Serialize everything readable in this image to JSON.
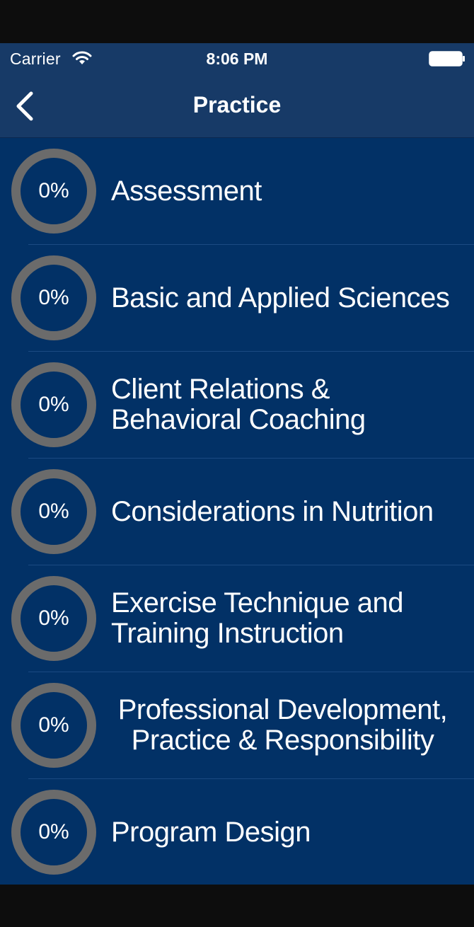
{
  "status_bar": {
    "carrier": "Carrier",
    "time": "8:06 PM"
  },
  "nav": {
    "title": "Practice",
    "back_icon": "chevron-left-icon"
  },
  "colors": {
    "background": "#023166",
    "nav_background": "#173a67",
    "ring": "#6b6b6b",
    "text": "#ffffff"
  },
  "topics": [
    {
      "label": "Assessment",
      "progress": "0%"
    },
    {
      "label": "Basic and Applied Sciences",
      "progress": "0%"
    },
    {
      "label": "Client Relations &\nBehavioral Coaching",
      "progress": "0%"
    },
    {
      "label": "Considerations in Nutrition",
      "progress": "0%"
    },
    {
      "label": "Exercise Technique and\nTraining Instruction",
      "progress": "0%"
    },
    {
      "label": "Professional Development,\nPractice & Responsibility",
      "progress": "0%"
    },
    {
      "label": "Program Design",
      "progress": "0%"
    }
  ]
}
